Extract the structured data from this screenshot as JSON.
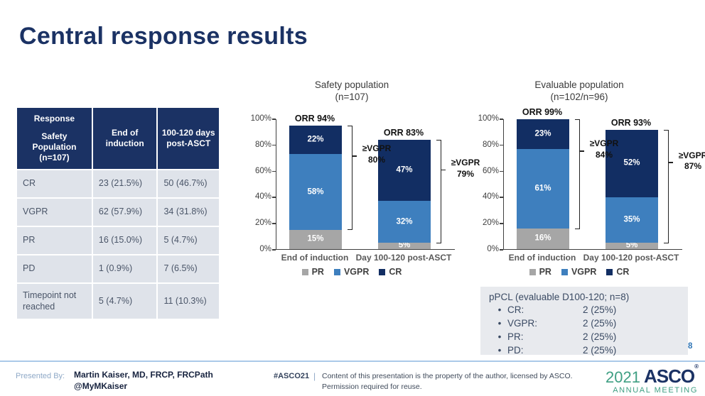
{
  "slide": {
    "title": "Central response results",
    "page_number": "8"
  },
  "table": {
    "header_col1_title": "Response",
    "header_col1_sub": "Safety Population (n=107)",
    "header_col2": "End of induction",
    "header_col3": "100-120 days post-ASCT",
    "rows": [
      {
        "label": "CR",
        "induction": "23 (21.5%)",
        "post": "50 (46.7%)"
      },
      {
        "label": "VGPR",
        "induction": "62 (57.9%)",
        "post": "34 (31.8%)"
      },
      {
        "label": "PR",
        "induction": "16 (15.0%)",
        "post": "5 (4.7%)"
      },
      {
        "label": "PD",
        "induction": "1 (0.9%)",
        "post": "7 (6.5%)"
      },
      {
        "label": "Timepoint not reached",
        "induction": "5 (4.7%)",
        "post": "11 (10.3%)"
      }
    ]
  },
  "chart_data": [
    {
      "type": "bar",
      "stacked": true,
      "title": "Safety population",
      "subtitle": "(n=107)",
      "categories": [
        "End of induction",
        "Day 100-120 post-ASCT"
      ],
      "series": [
        {
          "name": "PR",
          "color": "#a6a6a6",
          "values": [
            15,
            5
          ]
        },
        {
          "name": "VGPR",
          "color": "#3e7fbe",
          "values": [
            58,
            32
          ]
        },
        {
          "name": "CR",
          "color": "#122e63",
          "values": [
            22,
            47
          ]
        }
      ],
      "orr_labels": [
        "ORR 94%",
        "ORR 83%"
      ],
      "brackets": [
        {
          "line1": "≥VGPR",
          "line2": "80%"
        },
        {
          "line1": "≥VGPR",
          "line2": "79%"
        }
      ],
      "ylim": [
        0,
        100
      ],
      "yticks": [
        "0%",
        "20%",
        "40%",
        "60%",
        "80%",
        "100%"
      ],
      "grid": false,
      "legend": [
        "PR",
        "VGPR",
        "CR"
      ],
      "legend_position": "bottom"
    },
    {
      "type": "bar",
      "stacked": true,
      "title": "Evaluable population",
      "subtitle": "(n=102/n=96)",
      "categories": [
        "End of induction",
        "Day 100-120 post-ASCT"
      ],
      "series": [
        {
          "name": "PR",
          "color": "#a6a6a6",
          "values": [
            16,
            5
          ]
        },
        {
          "name": "VGPR",
          "color": "#3e7fbe",
          "values": [
            61,
            35
          ]
        },
        {
          "name": "CR",
          "color": "#122e63",
          "values": [
            23,
            52
          ]
        }
      ],
      "orr_labels": [
        "ORR 99%",
        "ORR 93%"
      ],
      "brackets": [
        {
          "line1": "≥VGPR",
          "line2": "84%"
        },
        {
          "line1": "≥VGPR",
          "line2": "87%"
        }
      ],
      "ylim": [
        0,
        100
      ],
      "yticks": [
        "0%",
        "20%",
        "40%",
        "60%",
        "80%",
        "100%"
      ],
      "grid": false,
      "legend": [
        "PR",
        "VGPR",
        "CR"
      ],
      "legend_position": "bottom"
    }
  ],
  "ppcl_box": {
    "title": "pPCL (evaluable D100-120; n=8)",
    "bullet": "•",
    "items": [
      {
        "label": "CR:",
        "value": "2 (25%)"
      },
      {
        "label": "VGPR:",
        "value": "2 (25%)"
      },
      {
        "label": "PR:",
        "value": "2 (25%)"
      },
      {
        "label": "PD:",
        "value": "2 (25%)"
      }
    ]
  },
  "footer": {
    "presented_by_label": "Presented By:",
    "presenter_name": "Martin Kaiser, MD, FRCP, FRCPath",
    "presenter_handle": "@MyMKaiser",
    "hashtag": "#ASCO21",
    "separator": "|",
    "disclaimer_line1": "Content of this presentation is the property of the author, licensed by ASCO.",
    "disclaimer_line2": "Permission required for reuse.",
    "logo_year": "2021",
    "logo_name": "ASCO",
    "logo_reg": "®",
    "logo_subtitle": "ANNUAL MEETING"
  },
  "colors": {
    "navy": "#1b3264",
    "bar_cr": "#122e63",
    "bar_vgpr": "#3e7fbe",
    "bar_pr": "#a6a6a6",
    "table_row_bg": "#dfe3ea",
    "ppcl_bg": "#e8eaee",
    "teal": "#3f9f83",
    "footer_line_blue": "#aac9e8",
    "page_number_blue": "#2e74b5"
  }
}
